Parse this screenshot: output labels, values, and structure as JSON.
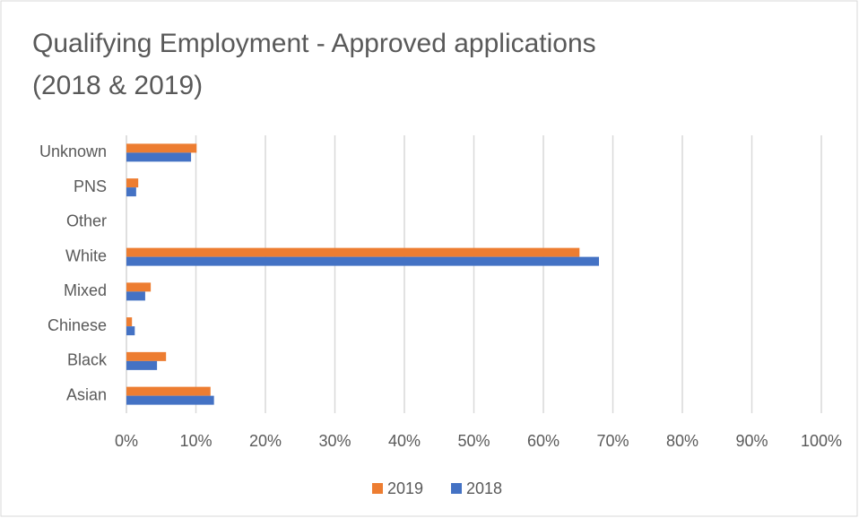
{
  "chart_data": {
    "type": "hbar",
    "title": "Qualifying Employment - Approved applications",
    "subtitle": "(2018 & 2019)",
    "categories": [
      "Unknown",
      "PNS",
      "Other",
      "White",
      "Mixed",
      "Chinese",
      "Black",
      "Asian"
    ],
    "series": [
      {
        "name": "2019",
        "color": "#ed7d31",
        "values": [
          10.1,
          1.7,
          0,
          65.2,
          3.5,
          0.8,
          5.7,
          12.1
        ]
      },
      {
        "name": "2018",
        "color": "#4472c4",
        "values": [
          9.3,
          1.4,
          0,
          68.0,
          2.7,
          1.2,
          4.4,
          12.6
        ]
      }
    ],
    "xlim": [
      0,
      100
    ],
    "xticks": [
      {
        "value": 0,
        "label": "0%"
      },
      {
        "value": 10,
        "label": "10%"
      },
      {
        "value": 20,
        "label": "20%"
      },
      {
        "value": 30,
        "label": "30%"
      },
      {
        "value": 40,
        "label": "40%"
      },
      {
        "value": 50,
        "label": "50%"
      },
      {
        "value": 60,
        "label": "60%"
      },
      {
        "value": 70,
        "label": "70%"
      },
      {
        "value": 80,
        "label": "80%"
      },
      {
        "value": 90,
        "label": "90%"
      },
      {
        "value": 100,
        "label": "100%"
      }
    ],
    "grid": true,
    "legend": "bottom"
  }
}
